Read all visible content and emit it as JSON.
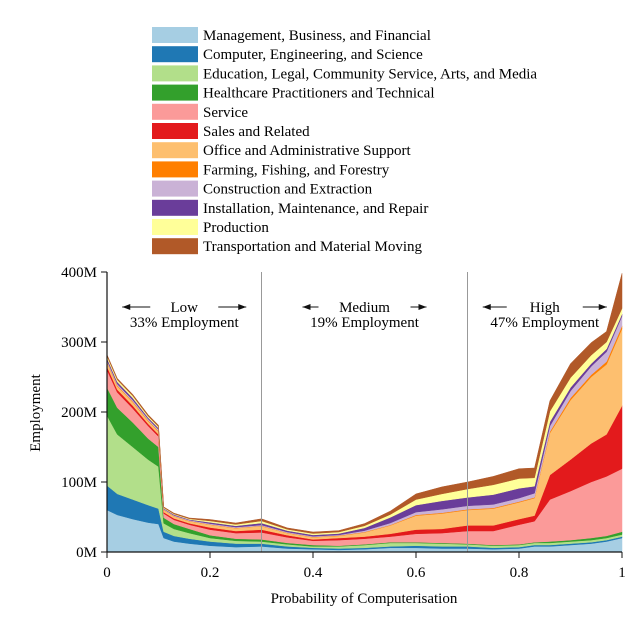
{
  "chart_data": {
    "type": "area",
    "title": "",
    "xlabel": "Probability of Computerisation",
    "ylabel": "Employment",
    "xlim": [
      0,
      1
    ],
    "ylim": [
      0,
      400
    ],
    "x_ticks": [
      "0",
      "0.2",
      "0.4",
      "0.6",
      "0.8",
      "1"
    ],
    "y_ticks": [
      "0M",
      "100M",
      "200M",
      "300M",
      "400M"
    ],
    "legend_position": "top",
    "grid": false,
    "x": [
      0,
      0.02,
      0.05,
      0.08,
      0.1,
      0.11,
      0.13,
      0.16,
      0.2,
      0.25,
      0.3,
      0.35,
      0.4,
      0.45,
      0.5,
      0.55,
      0.6,
      0.65,
      0.7,
      0.75,
      0.8,
      0.83,
      0.86,
      0.9,
      0.94,
      0.97,
      1.0
    ],
    "series": [
      {
        "name": "Management, Business, and Financial",
        "color": "#a6cee3",
        "values": [
          60,
          53,
          47,
          42,
          40,
          20,
          15,
          12,
          9,
          7,
          8,
          5,
          4,
          3,
          4,
          6,
          6,
          5,
          5,
          4,
          5,
          8,
          8,
          10,
          12,
          15,
          20
        ]
      },
      {
        "name": "Computer, Engineering, and Science",
        "color": "#1f78b4",
        "values": [
          35,
          30,
          28,
          25,
          22,
          9,
          8,
          7,
          6,
          5,
          4,
          3,
          2,
          2,
          2,
          2,
          3,
          3,
          3,
          2,
          2,
          2,
          2,
          2,
          2,
          2,
          2
        ]
      },
      {
        "name": "Education, Legal, Community Service, Arts, and Media",
        "color": "#b2df8a",
        "values": [
          100,
          85,
          75,
          65,
          60,
          12,
          10,
          8,
          5,
          4,
          3,
          3,
          2,
          3,
          4,
          5,
          4,
          4,
          3,
          3,
          3,
          3,
          3,
          3,
          3,
          3,
          3
        ]
      },
      {
        "name": "Healthcare Practitioners and Technical",
        "color": "#33a02c",
        "values": [
          40,
          38,
          35,
          30,
          28,
          8,
          7,
          6,
          4,
          3,
          3,
          2,
          2,
          1,
          1,
          1,
          1,
          1,
          1,
          1,
          1,
          1,
          2,
          2,
          3,
          3,
          4
        ]
      },
      {
        "name": "Service",
        "color": "#fb9a99",
        "values": [
          25,
          22,
          20,
          18,
          15,
          6,
          6,
          6,
          8,
          8,
          10,
          8,
          6,
          8,
          8,
          8,
          12,
          14,
          18,
          20,
          28,
          30,
          60,
          70,
          80,
          85,
          90
        ]
      },
      {
        "name": "Sales and Related",
        "color": "#e31a1c",
        "values": [
          5,
          4,
          4,
          3,
          3,
          2,
          2,
          2,
          3,
          3,
          4,
          3,
          2,
          3,
          3,
          4,
          6,
          6,
          8,
          8,
          8,
          8,
          35,
          45,
          55,
          60,
          90
        ]
      },
      {
        "name": "Office and Administrative Support",
        "color": "#fdbf6f",
        "values": [
          6,
          5,
          5,
          4,
          4,
          3,
          3,
          3,
          4,
          4,
          5,
          3,
          3,
          3,
          6,
          12,
          20,
          22,
          22,
          24,
          24,
          25,
          60,
          85,
          95,
          100,
          110
        ]
      },
      {
        "name": "Farming, Fishing, and Forestry",
        "color": "#ff7f00",
        "values": [
          1,
          1,
          1,
          1,
          1,
          0.5,
          0.5,
          0.5,
          0.5,
          0.5,
          0.5,
          0.5,
          0.5,
          0.5,
          0.5,
          0.5,
          1,
          1,
          1,
          1,
          1,
          1,
          2,
          3,
          3,
          4,
          4
        ]
      },
      {
        "name": "Construction and Extraction",
        "color": "#cab2d6",
        "values": [
          2,
          2,
          2,
          2,
          2,
          1,
          1,
          1,
          1,
          1,
          1,
          1,
          1,
          1,
          2,
          3,
          4,
          5,
          5,
          5,
          5,
          6,
          8,
          10,
          12,
          14,
          14
        ]
      },
      {
        "name": "Installation, Maintenance, and Repair",
        "color": "#6a3d9a",
        "values": [
          3,
          3,
          3,
          2,
          2,
          1,
          1,
          1,
          2,
          2,
          3,
          2,
          2,
          2,
          4,
          8,
          10,
          12,
          12,
          14,
          14,
          10,
          6,
          5,
          4,
          4,
          3
        ]
      },
      {
        "name": "Production",
        "color": "#ffff99",
        "values": [
          3,
          3,
          3,
          2,
          2,
          1,
          1,
          1,
          2,
          2,
          3,
          2,
          2,
          2,
          3,
          4,
          8,
          10,
          12,
          14,
          14,
          12,
          15,
          14,
          12,
          10,
          8
        ]
      },
      {
        "name": "Transportation and Material Moving",
        "color": "#b15928",
        "values": [
          2,
          2,
          2,
          2,
          2,
          1,
          1,
          1,
          2,
          2,
          3,
          2,
          2,
          2,
          3,
          5,
          8,
          10,
          10,
          12,
          14,
          14,
          15,
          20,
          18,
          15,
          50
        ]
      }
    ],
    "thresholds": [
      0.3,
      0.7
    ],
    "annotations": [
      {
        "arrow_label": "Low",
        "subtitle": "33% Employment"
      },
      {
        "arrow_label": "Medium",
        "subtitle": "19% Employment"
      },
      {
        "arrow_label": "High",
        "subtitle": "47% Employment"
      }
    ]
  }
}
